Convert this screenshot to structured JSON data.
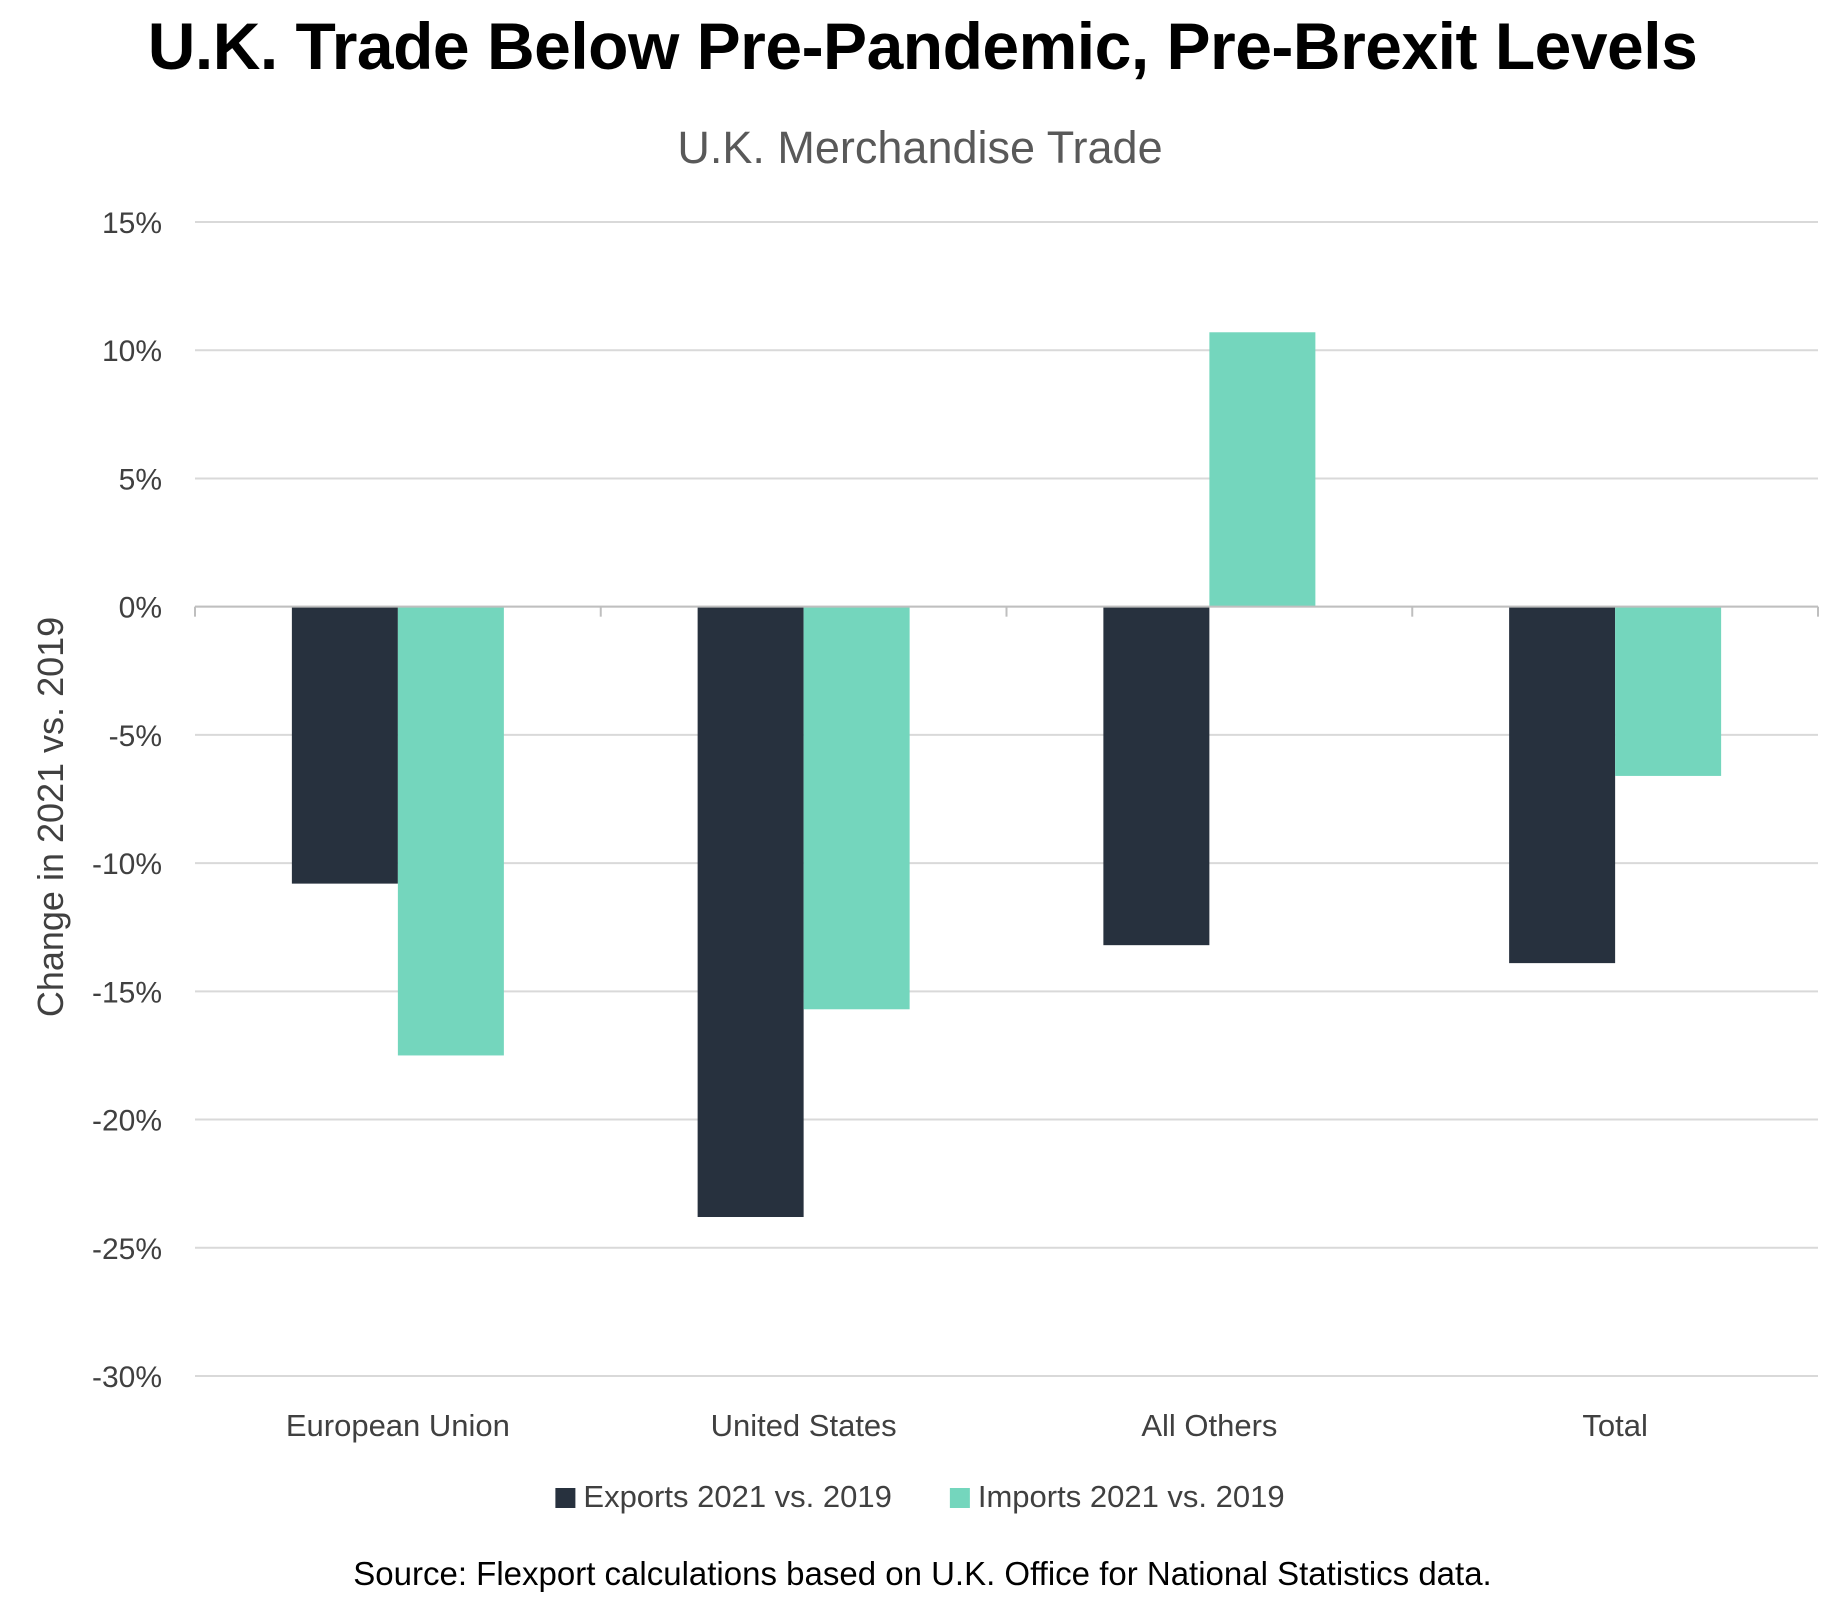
{
  "headline": "U.K. Trade Below Pre-Pandemic, Pre-Brexit Levels",
  "source": "Source: Flexport calculations based on U.K. Office for National Statistics data.",
  "chart_data": {
    "type": "bar",
    "title": "U.K. Merchandise Trade",
    "xlabel": "",
    "ylabel": "Change in 2021 vs. 2019",
    "ylim": [
      -30,
      15
    ],
    "ytick_step": 5,
    "ytick_format": "percent",
    "grid": true,
    "legend_position": "bottom",
    "categories": [
      "European Union",
      "United States",
      "All Others",
      "Total"
    ],
    "series": [
      {
        "name": "Exports 2021 vs. 2019",
        "color": "#27313e",
        "values": [
          -10.8,
          -23.8,
          -13.2,
          -13.9
        ]
      },
      {
        "name": "Imports 2021 vs. 2019",
        "color": "#74d6bd",
        "values": [
          -17.5,
          -15.7,
          10.7,
          -6.6
        ]
      }
    ]
  }
}
